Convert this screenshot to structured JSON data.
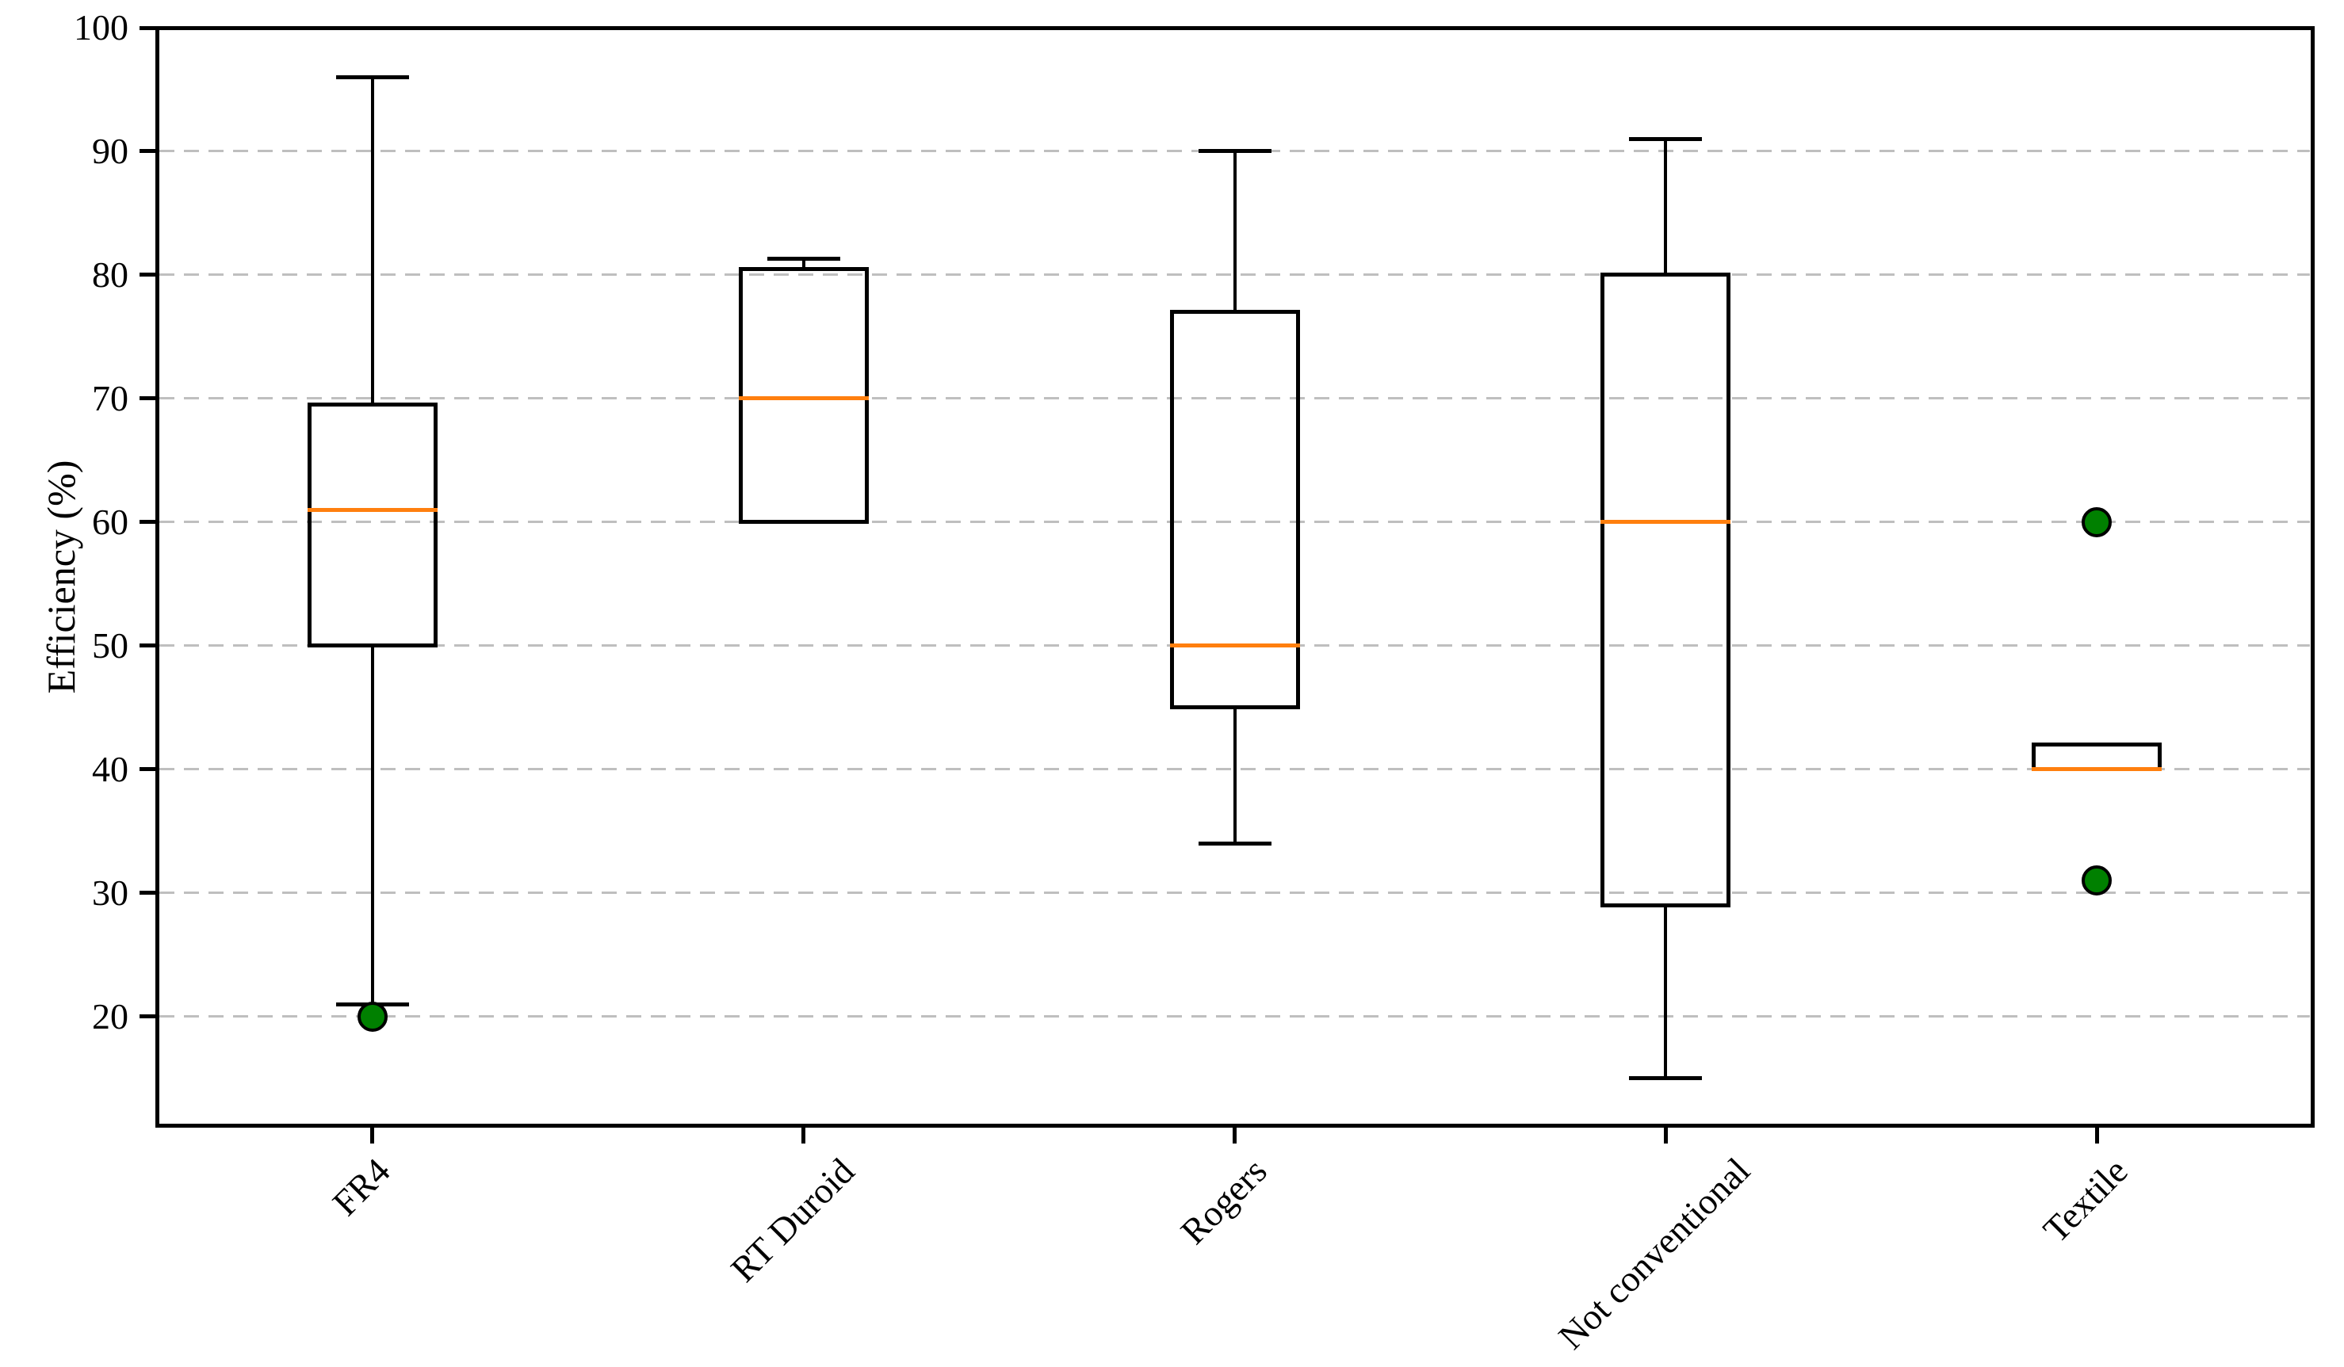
{
  "chart_data": {
    "type": "boxplot",
    "title": "",
    "xlabel": "",
    "ylabel": "Efficiency (%)",
    "ylim": [
      11.2,
      100
    ],
    "yticks": [
      100,
      90,
      80,
      70,
      60,
      50,
      40,
      30,
      20
    ],
    "grid": "horizontal-dashed",
    "legend": "none",
    "categories": [
      "FR4",
      "RT Duroid",
      "Rogers",
      "Not conventional",
      "Textile"
    ],
    "series": [
      {
        "name": "FR4",
        "whisker_low": 21,
        "q1": 50,
        "median": 61,
        "q3": 69.5,
        "whisker_high": 96,
        "fliers": [
          20
        ]
      },
      {
        "name": "RT Duroid",
        "whisker_low": 60,
        "q1": 60,
        "median": 70,
        "q3": 80.5,
        "whisker_high": 81.3,
        "fliers": []
      },
      {
        "name": "Rogers",
        "whisker_low": 34,
        "q1": 45,
        "median": 50,
        "q3": 77,
        "whisker_high": 90,
        "fliers": []
      },
      {
        "name": "Not conventional",
        "whisker_low": 15,
        "q1": 29,
        "median": 60,
        "q3": 80,
        "whisker_high": 91,
        "fliers": []
      },
      {
        "name": "Textile",
        "whisker_low": 40,
        "q1": 40,
        "median": 40,
        "q3": 42,
        "whisker_high": 42,
        "fliers": [
          60,
          31
        ]
      }
    ],
    "colors": {
      "median": "#ff7f0e",
      "flier_fill": "#008000",
      "flier_edge": "#000000",
      "box_edge": "#000000",
      "grid": "#bfbfbf",
      "axis": "#000000"
    }
  }
}
